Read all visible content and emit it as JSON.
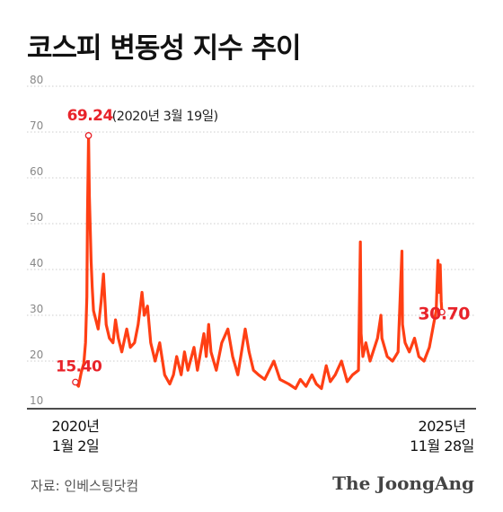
{
  "title": "코스피 변동성 지수 추이",
  "source": "자료: 인베스팅닷컴",
  "brand": "The JoongAng",
  "colors": {
    "line": "#ff3f14",
    "accent": "#e8232a",
    "grid": "#cccccc",
    "text": "#111111"
  },
  "chart_data": {
    "type": "line",
    "title": "코스피 변동성 지수 추이",
    "xlabel": "",
    "ylabel": "",
    "ylim": [
      10,
      80
    ],
    "yticks": [
      "80",
      "70",
      "60",
      "50",
      "40",
      "30",
      "20",
      "10"
    ],
    "grid": true,
    "x_start_label": [
      "2020년",
      "1월 2일"
    ],
    "x_end_label": [
      "2025년",
      "11월 28일"
    ],
    "x_range": [
      "2020-01-02",
      "2025-11-28"
    ],
    "series": [
      {
        "points": [
          [
            "2020-01-02",
            15.4
          ],
          [
            "2020-01-20",
            14.5
          ],
          [
            "2020-02-05",
            17.5
          ],
          [
            "2020-02-20",
            19.5
          ],
          [
            "2020-03-01",
            24.0
          ],
          [
            "2020-03-09",
            34.0
          ],
          [
            "2020-03-13",
            52.0
          ],
          [
            "2020-03-19",
            69.24
          ],
          [
            "2020-03-24",
            56.0
          ],
          [
            "2020-03-30",
            48.0
          ],
          [
            "2020-04-03",
            42.0
          ],
          [
            "2020-04-10",
            36.0
          ],
          [
            "2020-04-17",
            31.0
          ],
          [
            "2020-05-01",
            29.0
          ],
          [
            "2020-05-15",
            27.0
          ],
          [
            "2020-06-01",
            33.0
          ],
          [
            "2020-06-15",
            39.0
          ],
          [
            "2020-07-01",
            28.0
          ],
          [
            "2020-07-20",
            25.0
          ],
          [
            "2020-08-10",
            24.0
          ],
          [
            "2020-08-25",
            29.0
          ],
          [
            "2020-09-10",
            25.0
          ],
          [
            "2020-10-01",
            22.0
          ],
          [
            "2020-10-30",
            27.0
          ],
          [
            "2020-11-20",
            23.0
          ],
          [
            "2020-12-15",
            24.0
          ],
          [
            "2021-01-05",
            28.0
          ],
          [
            "2021-01-28",
            35.0
          ],
          [
            "2021-02-10",
            30.0
          ],
          [
            "2021-03-01",
            32.0
          ],
          [
            "2021-03-20",
            24.0
          ],
          [
            "2021-04-15",
            20.0
          ],
          [
            "2021-05-12",
            24.0
          ],
          [
            "2021-06-10",
            17.0
          ],
          [
            "2021-07-10",
            15.0
          ],
          [
            "2021-08-01",
            17.0
          ],
          [
            "2021-08-20",
            21.0
          ],
          [
            "2021-09-15",
            17.0
          ],
          [
            "2021-10-05",
            22.0
          ],
          [
            "2021-10-25",
            18.0
          ],
          [
            "2021-11-30",
            23.0
          ],
          [
            "2021-12-20",
            18.0
          ],
          [
            "2022-01-27",
            26.0
          ],
          [
            "2022-02-10",
            21.0
          ],
          [
            "2022-02-24",
            28.0
          ],
          [
            "2022-03-10",
            22.0
          ],
          [
            "2022-04-10",
            18.0
          ],
          [
            "2022-05-12",
            24.0
          ],
          [
            "2022-06-17",
            27.0
          ],
          [
            "2022-07-15",
            21.0
          ],
          [
            "2022-08-15",
            17.0
          ],
          [
            "2022-09-27",
            27.0
          ],
          [
            "2022-10-20",
            22.0
          ],
          [
            "2022-11-15",
            18.0
          ],
          [
            "2022-12-15",
            17.0
          ],
          [
            "2023-01-20",
            16.0
          ],
          [
            "2023-03-15",
            20.0
          ],
          [
            "2023-04-20",
            16.0
          ],
          [
            "2023-06-10",
            15.0
          ],
          [
            "2023-07-20",
            14.0
          ],
          [
            "2023-08-18",
            16.0
          ],
          [
            "2023-09-20",
            14.5
          ],
          [
            "2023-10-25",
            17.0
          ],
          [
            "2023-11-20",
            15.0
          ],
          [
            "2023-12-20",
            14.0
          ],
          [
            "2024-01-17",
            19.0
          ],
          [
            "2024-02-10",
            15.5
          ],
          [
            "2024-03-10",
            17.0
          ],
          [
            "2024-04-16",
            20.0
          ],
          [
            "2024-05-20",
            15.5
          ],
          [
            "2024-06-20",
            17.0
          ],
          [
            "2024-07-25",
            18.0
          ],
          [
            "2024-08-05",
            46.0
          ],
          [
            "2024-08-09",
            26.0
          ],
          [
            "2024-08-20",
            21.0
          ],
          [
            "2024-09-06",
            24.0
          ],
          [
            "2024-10-01",
            20.0
          ],
          [
            "2024-11-14",
            25.0
          ],
          [
            "2024-12-04",
            30.0
          ],
          [
            "2024-12-10",
            25.0
          ],
          [
            "2025-01-10",
            21.0
          ],
          [
            "2025-02-10",
            20.0
          ],
          [
            "2025-03-15",
            22.0
          ],
          [
            "2025-04-07",
            44.0
          ],
          [
            "2025-04-10",
            28.0
          ],
          [
            "2025-04-25",
            24.0
          ],
          [
            "2025-05-20",
            22.0
          ],
          [
            "2025-06-20",
            25.0
          ],
          [
            "2025-07-15",
            21.0
          ],
          [
            "2025-08-15",
            20.0
          ],
          [
            "2025-09-15",
            23.0
          ],
          [
            "2025-10-10",
            28.0
          ],
          [
            "2025-10-25",
            31.0
          ],
          [
            "2025-11-05",
            42.0
          ],
          [
            "2025-11-12",
            35.0
          ],
          [
            "2025-11-18",
            41.0
          ],
          [
            "2025-11-24",
            33.0
          ],
          [
            "2025-11-28",
            30.7
          ]
        ]
      }
    ],
    "annotations": [
      {
        "date": "2020-01-02",
        "value": 15.4,
        "label": "15.40"
      },
      {
        "date": "2020-03-19",
        "value": 69.24,
        "label": "69.24",
        "note": "(2020년 3월 19일)"
      },
      {
        "date": "2025-11-28",
        "value": 30.7,
        "label": "30.70"
      }
    ]
  }
}
